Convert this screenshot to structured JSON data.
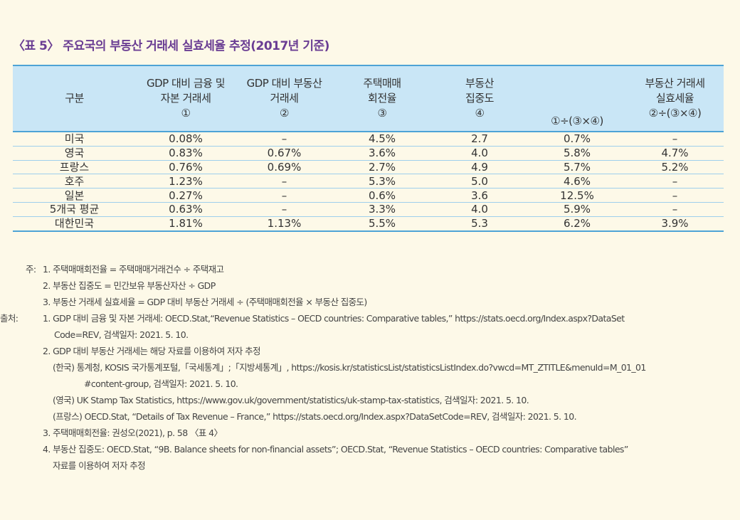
{
  "title": "〈표 5〉 주요국의 부동산 거래세 실효세율 추정(2017년 기준)",
  "table": {
    "headers": [
      [
        "구분"
      ],
      [
        "GDP 대비 금융 및",
        "자본 거래세",
        "①"
      ],
      [
        "GDP 대비 부동산",
        "거래세",
        "②"
      ],
      [
        "주택매매",
        "회전율",
        "③"
      ],
      [
        "부동산",
        "집중도",
        "④"
      ],
      [
        "①÷(③×④)"
      ],
      [
        "부동산 거래세",
        "실효세율",
        "②÷(③×④)"
      ]
    ],
    "rows": [
      [
        "미국",
        "0.08%",
        "–",
        "4.5%",
        "2.7",
        "0.7%",
        "–"
      ],
      [
        "영국",
        "0.83%",
        "0.67%",
        "3.6%",
        "4.0",
        "5.8%",
        "4.7%"
      ],
      [
        "프랑스",
        "0.76%",
        "0.69%",
        "2.7%",
        "4.9",
        "5.7%",
        "5.2%"
      ],
      [
        "호주",
        "1.23%",
        "–",
        "5.3%",
        "5.0",
        "4.6%",
        "–"
      ],
      [
        "일본",
        "0.27%",
        "–",
        "0.6%",
        "3.6",
        "12.5%",
        "–"
      ],
      [
        "5개국 평균",
        "0.63%",
        "–",
        "3.3%",
        "4.0",
        "5.9%",
        "–"
      ],
      [
        "대한민국",
        "1.81%",
        "1.13%",
        "5.5%",
        "5.3",
        "6.2%",
        "3.9%"
      ]
    ]
  },
  "notes": {
    "note_label": "주:",
    "note_items": [
      "1. 주택매매회전율 = 주택매매거래건수 ÷ 주택재고",
      "2. 부동산 집중도 = 민간보유 부동산자산 ÷ GDP",
      "3. 부동산 거래세 실효세율 = GDP 대비 부동산 거래세 ÷ (주택매매회전율 × 부동산 집중도)"
    ],
    "source_label": "출처:",
    "source_1a": "1. GDP 대비 금융 및 자본 거래세: OECD.Stat,“Revenue Statistics – OECD countries: Comparative tables,” https://stats.oecd.org/Index.aspx?DataSet",
    "source_1b": "Code=REV, 검색일자: 2021. 5. 10.",
    "source_2": "2. GDP 대비 부동산 거래세는 해당 자료를 이용하여 저자 추정",
    "source_2_kr_a": "(한국) 통계청, KOSIS 국가통계포털,「국세통계」;「지방세통계」, https://kosis.kr/statisticsList/statisticsListIndex.do?vwcd=MT_ZTITLE&menuId=M_01_01",
    "source_2_kr_b": "#content-group, 검색일자: 2021. 5. 10.",
    "source_2_uk": "(영국) UK Stamp Tax Statistics, https://www.gov.uk/government/statistics/uk-stamp-tax-statistics, 검색일자: 2021. 5. 10.",
    "source_2_fr": "(프랑스) OECD.Stat, “Details of Tax Revenue – France,” https://stats.oecd.org/Index.aspx?DataSetCode=REV, 검색일자: 2021. 5. 10.",
    "source_3": "3. 주택매매회전율: 권성오(2021), p. 58 〈표 4〉",
    "source_4a": "4. 부동산 집중도: OECD.Stat, “9B. Balance sheets for non-financial assets”; OECD.Stat, “Revenue Statistics – OECD countries: Comparative tables”",
    "source_4b": "자료를 이용하여 저자 추정"
  }
}
